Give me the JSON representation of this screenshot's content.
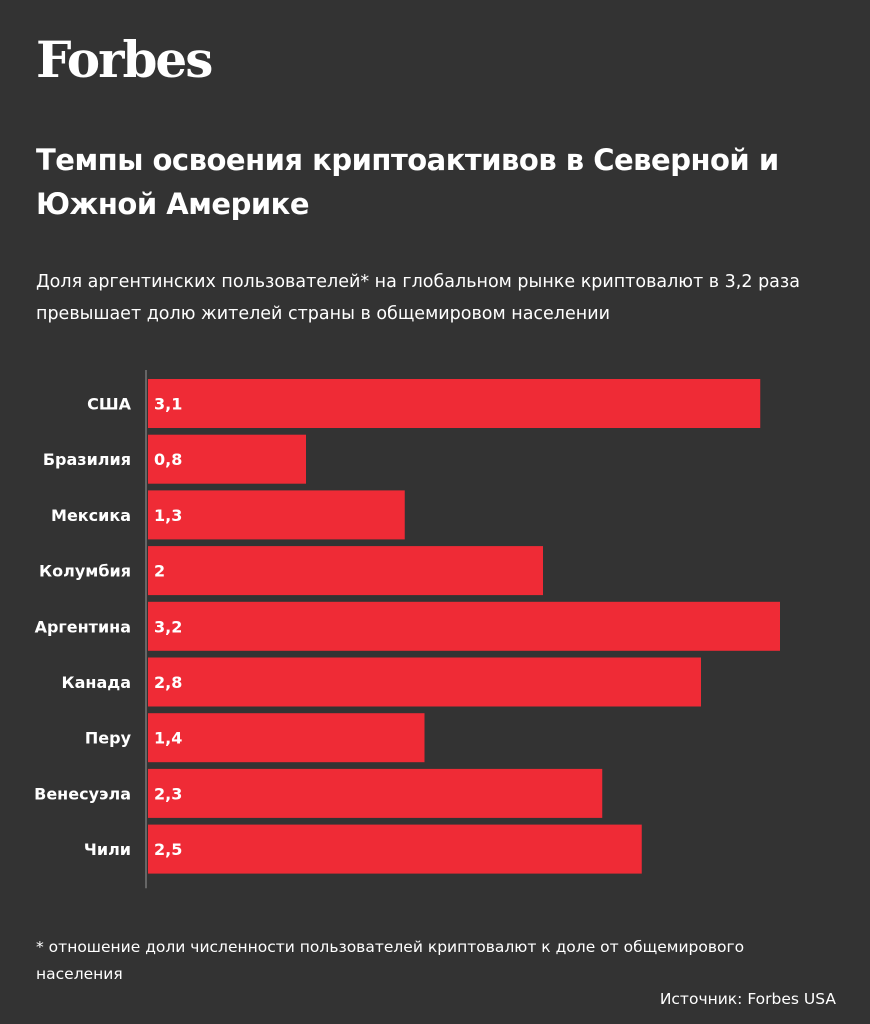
{
  "brand": "Forbes",
  "title": "Темпы освоения криптоактивов в Северной и Южной Америке",
  "subtitle": "Доля аргентинских пользователей* на глобальном рынке криптовалют в 3,2 раза превышает долю жителей страны в общемировом населении",
  "footnote": "* отношение доли численности пользователей криптовалют к доле от общемирового населения",
  "source": "Источник: Forbes USA",
  "colors": {
    "background": "#333333",
    "bar": "#ef2b36",
    "text": "#ffffff"
  },
  "chart_data": {
    "type": "bar",
    "orientation": "horizontal",
    "categories": [
      "США",
      "Бразилия",
      "Мексика",
      "Колумбия",
      "Аргентина",
      "Канада",
      "Перу",
      "Венесуэла",
      "Чили"
    ],
    "values": [
      3.1,
      0.8,
      1.3,
      2,
      3.2,
      2.8,
      1.4,
      2.3,
      2.5
    ],
    "value_labels": [
      "3,1",
      "0,8",
      "1,3",
      "2",
      "3,2",
      "2,8",
      "1,4",
      "2,3",
      "2,5"
    ],
    "xlim": [
      0,
      3.2
    ],
    "grid": false
  }
}
